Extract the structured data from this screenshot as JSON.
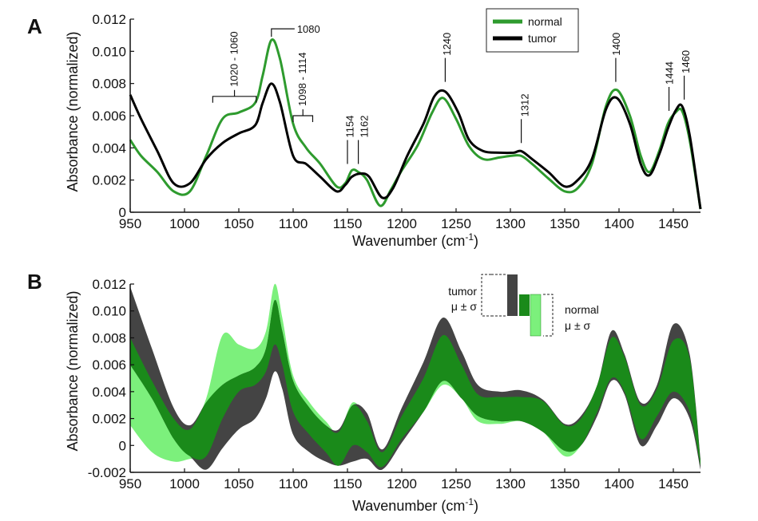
{
  "chart_data": [
    {
      "panel": "A",
      "type": "line",
      "xlabel_main": "Wavenumber (cm",
      "xlabel_sup": "-1",
      "xlabel_end": ")",
      "ylabel": "Absorbance (normalized)",
      "xlim": [
        950,
        1475
      ],
      "ylim": [
        0,
        0.012
      ],
      "x_ticks": [
        "950",
        "1000",
        "1050",
        "1100",
        "1150",
        "1200",
        "1250",
        "1300",
        "1350",
        "1400",
        "1450"
      ],
      "y_ticks": [
        "0",
        "0.002",
        "0.004",
        "0.006",
        "0.008",
        "0.010",
        "0.012"
      ],
      "legend": [
        "normal",
        "tumor"
      ],
      "colors": {
        "normal": "#2e9b2e",
        "tumor": "#000000"
      },
      "series": [
        {
          "name": "normal",
          "points": [
            [
              950,
              0.0045
            ],
            [
              960,
              0.0035
            ],
            [
              975,
              0.0025
            ],
            [
              990,
              0.0013
            ],
            [
              1005,
              0.0013
            ],
            [
              1020,
              0.0035
            ],
            [
              1035,
              0.0058
            ],
            [
              1050,
              0.0062
            ],
            [
              1065,
              0.0068
            ],
            [
              1072,
              0.0085
            ],
            [
              1080,
              0.0107
            ],
            [
              1088,
              0.0095
            ],
            [
              1100,
              0.0055
            ],
            [
              1112,
              0.004
            ],
            [
              1125,
              0.003
            ],
            [
              1140,
              0.0016
            ],
            [
              1148,
              0.0018
            ],
            [
              1154,
              0.0026
            ],
            [
              1160,
              0.0025
            ],
            [
              1168,
              0.002
            ],
            [
              1180,
              0.0004
            ],
            [
              1190,
              0.0014
            ],
            [
              1200,
              0.0026
            ],
            [
              1215,
              0.0042
            ],
            [
              1228,
              0.0062
            ],
            [
              1238,
              0.0071
            ],
            [
              1250,
              0.0058
            ],
            [
              1262,
              0.0041
            ],
            [
              1275,
              0.0033
            ],
            [
              1290,
              0.0034
            ],
            [
              1300,
              0.0035
            ],
            [
              1310,
              0.0035
            ],
            [
              1320,
              0.003
            ],
            [
              1335,
              0.0021
            ],
            [
              1350,
              0.0013
            ],
            [
              1362,
              0.0015
            ],
            [
              1375,
              0.003
            ],
            [
              1388,
              0.0066
            ],
            [
              1398,
              0.0076
            ],
            [
              1410,
              0.006
            ],
            [
              1420,
              0.0035
            ],
            [
              1428,
              0.0025
            ],
            [
              1437,
              0.0038
            ],
            [
              1445,
              0.0055
            ],
            [
              1452,
              0.0062
            ],
            [
              1458,
              0.0063
            ],
            [
              1465,
              0.0045
            ],
            [
              1475,
              0.0002
            ]
          ]
        },
        {
          "name": "tumor",
          "points": [
            [
              950,
              0.0073
            ],
            [
              960,
              0.0058
            ],
            [
              975,
              0.0038
            ],
            [
              990,
              0.0018
            ],
            [
              1005,
              0.0018
            ],
            [
              1020,
              0.0033
            ],
            [
              1035,
              0.0043
            ],
            [
              1050,
              0.0049
            ],
            [
              1065,
              0.0054
            ],
            [
              1072,
              0.0068
            ],
            [
              1080,
              0.008
            ],
            [
              1088,
              0.0068
            ],
            [
              1100,
              0.0035
            ],
            [
              1112,
              0.003
            ],
            [
              1125,
              0.0022
            ],
            [
              1140,
              0.0013
            ],
            [
              1148,
              0.0017
            ],
            [
              1154,
              0.0022
            ],
            [
              1162,
              0.0024
            ],
            [
              1170,
              0.0022
            ],
            [
              1182,
              0.0009
            ],
            [
              1192,
              0.0015
            ],
            [
              1205,
              0.0035
            ],
            [
              1220,
              0.0055
            ],
            [
              1230,
              0.0072
            ],
            [
              1240,
              0.0075
            ],
            [
              1252,
              0.0062
            ],
            [
              1262,
              0.0045
            ],
            [
              1275,
              0.0038
            ],
            [
              1290,
              0.0037
            ],
            [
              1303,
              0.0037
            ],
            [
              1310,
              0.0038
            ],
            [
              1320,
              0.0033
            ],
            [
              1335,
              0.0025
            ],
            [
              1350,
              0.0016
            ],
            [
              1362,
              0.002
            ],
            [
              1375,
              0.0033
            ],
            [
              1388,
              0.0064
            ],
            [
              1398,
              0.0071
            ],
            [
              1410,
              0.0055
            ],
            [
              1420,
              0.003
            ],
            [
              1428,
              0.0023
            ],
            [
              1437,
              0.0036
            ],
            [
              1445,
              0.0052
            ],
            [
              1452,
              0.0063
            ],
            [
              1458,
              0.0066
            ],
            [
              1465,
              0.0048
            ],
            [
              1475,
              0.0002
            ]
          ]
        }
      ],
      "annotations": [
        {
          "label": "1020 - 1060",
          "type": "bracket",
          "x_start": 1026,
          "x_end": 1066,
          "y": 0.0072,
          "text_x": 1046
        },
        {
          "label": "1080",
          "type": "elbow",
          "x": 1080,
          "y": 0.0113,
          "text_x": 1094
        },
        {
          "label": "1098 - 1114",
          "type": "bracket",
          "x_start": 1100,
          "x_end": 1118,
          "y": 0.006,
          "text_x": 1109
        },
        {
          "label": "1154",
          "type": "line",
          "x": 1150,
          "y": 0.003,
          "text_x": 1152
        },
        {
          "label": "1162",
          "type": "line",
          "x": 1160,
          "y": 0.003,
          "text_x": 1165
        },
        {
          "label": "1240",
          "type": "line",
          "x": 1240,
          "y": 0.0081,
          "text_x": 1241
        },
        {
          "label": "1312",
          "type": "line",
          "x": 1310,
          "y": 0.0043,
          "text_x": 1313
        },
        {
          "label": "1400",
          "type": "line",
          "x": 1397,
          "y": 0.0081,
          "text_x": 1397
        },
        {
          "label": "1444",
          "type": "line",
          "x": 1446,
          "y": 0.0063,
          "text_x": 1446
        },
        {
          "label": "1460",
          "type": "line",
          "x": 1460,
          "y": 0.007,
          "text_x": 1461
        }
      ]
    },
    {
      "panel": "B",
      "type": "area",
      "xlabel_main": "Wavenumber (cm",
      "xlabel_sup": "-1",
      "xlabel_end": ")",
      "ylabel": "Absorbance (normalized)",
      "xlim": [
        950,
        1475
      ],
      "ylim": [
        -0.002,
        0.012
      ],
      "x_ticks": [
        "950",
        "1000",
        "1050",
        "1100",
        "1150",
        "1200",
        "1250",
        "1300",
        "1350",
        "1400",
        "1450"
      ],
      "y_ticks": [
        "-0.002",
        "0",
        "0.002",
        "0.004",
        "0.006",
        "0.008",
        "0.010",
        "0.012"
      ],
      "legend": {
        "tumor": "tumor",
        "normal": "normal",
        "stat": "μ ± σ"
      },
      "colors": {
        "tumor_sd": "#444444",
        "tumor_mean": "#1a8a1a",
        "normal_sd": "#7cf07c",
        "normal_mean": "#2e9b2e"
      },
      "bands": [
        {
          "name": "normal ± σ",
          "x": [
            950,
            970,
            990,
            1005,
            1020,
            1035,
            1050,
            1065,
            1075,
            1083,
            1090,
            1100,
            1115,
            1130,
            1142,
            1155,
            1168,
            1182,
            1200,
            1220,
            1238,
            1255,
            1270,
            1290,
            1310,
            1330,
            1350,
            1365,
            1380,
            1393,
            1405,
            1420,
            1435,
            1450,
            1465,
            1475
          ],
          "upper": [
            0.008,
            0.0048,
            0.002,
            0.0012,
            0.0035,
            0.0082,
            0.0075,
            0.0072,
            0.0085,
            0.012,
            0.0095,
            0.0052,
            0.0032,
            0.0018,
            0.001,
            0.0032,
            0.0018,
            -0.0005,
            0.0022,
            0.005,
            0.0082,
            0.006,
            0.0038,
            0.0036,
            0.0036,
            0.0033,
            0.0015,
            0.002,
            0.0045,
            0.008,
            0.0066,
            0.003,
            0.0042,
            0.0078,
            0.0065,
            -0.0012
          ],
          "lower": [
            0.0015,
            -0.0005,
            -0.0012,
            -0.001,
            -0.0008,
            0.002,
            0.004,
            0.0045,
            0.0055,
            0.0075,
            0.006,
            0.0025,
            0.0008,
            -0.0005,
            -0.0015,
            0.0,
            -0.0005,
            -0.0016,
            0.0005,
            0.0025,
            0.0045,
            0.0035,
            0.0018,
            0.0016,
            0.0018,
            0.001,
            -0.0008,
            0.0,
            0.0025,
            0.005,
            0.004,
            0.0005,
            0.0022,
            0.004,
            0.0025,
            -0.0015
          ]
        },
        {
          "name": "tumor ± σ",
          "x": [
            950,
            970,
            990,
            1005,
            1020,
            1035,
            1050,
            1065,
            1075,
            1083,
            1090,
            1100,
            1115,
            1130,
            1142,
            1155,
            1168,
            1182,
            1200,
            1220,
            1238,
            1255,
            1270,
            1290,
            1310,
            1330,
            1350,
            1365,
            1380,
            1393,
            1405,
            1420,
            1435,
            1450,
            1465,
            1475
          ],
          "upper": [
            0.0118,
            0.0072,
            0.0028,
            0.0015,
            0.0032,
            0.0045,
            0.0052,
            0.0058,
            0.0072,
            0.0108,
            0.0085,
            0.0048,
            0.0028,
            0.0015,
            0.0012,
            0.003,
            0.0024,
            -0.0003,
            0.0028,
            0.0062,
            0.0095,
            0.007,
            0.0045,
            0.004,
            0.0041,
            0.0034,
            0.0016,
            0.0022,
            0.0045,
            0.0085,
            0.0068,
            0.0032,
            0.0045,
            0.009,
            0.0068,
            -0.001
          ],
          "lower": [
            0.006,
            0.0035,
            0.0005,
            -0.0008,
            -0.0018,
            -0.0002,
            0.0012,
            0.002,
            0.0035,
            0.0055,
            0.0042,
            0.0008,
            -0.0005,
            -0.0012,
            -0.0015,
            -0.0012,
            -0.001,
            -0.0018,
            0.0002,
            0.0025,
            0.0048,
            0.0035,
            0.0022,
            0.0018,
            0.0018,
            0.001,
            -0.0004,
            0.0,
            0.0022,
            0.0048,
            0.0038,
            0.0,
            0.0015,
            0.0035,
            0.002,
            -0.0018
          ]
        }
      ]
    }
  ]
}
